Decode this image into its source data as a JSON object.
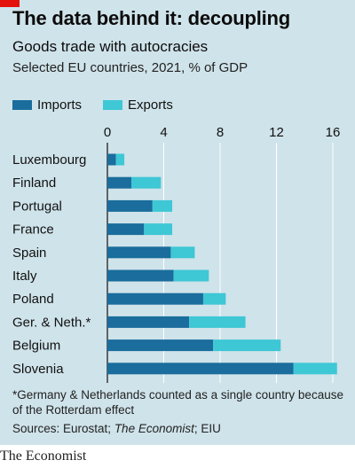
{
  "header": {
    "title": "The data behind it: decoupling",
    "subtitle": "Goods trade with autocracies",
    "subtitle2": "Selected EU countries, 2021, % of GDP"
  },
  "colors": {
    "imports": "#1a6d9c",
    "exports": "#3ec7d5",
    "accent": "#e3120b",
    "background": "#cfe3ea"
  },
  "chart_data": {
    "type": "bar",
    "orientation": "horizontal",
    "stacked": true,
    "categories": [
      "Luxembourg",
      "Finland",
      "Portugal",
      "France",
      "Spain",
      "Italy",
      "Poland",
      "Ger. & Neth.*",
      "Belgium",
      "Slovenia"
    ],
    "series": [
      {
        "name": "Imports",
        "values": [
          0.6,
          1.7,
          3.2,
          2.6,
          4.5,
          4.7,
          6.8,
          5.8,
          7.5,
          13.2
        ]
      },
      {
        "name": "Exports",
        "values": [
          0.6,
          2.1,
          1.4,
          2.0,
          1.7,
          2.5,
          1.6,
          4.0,
          4.8,
          3.1
        ]
      }
    ],
    "xticks": [
      "0",
      "4",
      "8",
      "12",
      "16"
    ],
    "xlim": [
      0,
      16
    ],
    "legend_position": "top-left",
    "grid": true
  },
  "footnote": {
    "line1": "*Germany & Netherlands counted as a single country because",
    "line2": "of the Rotterdam effect",
    "sources_prefix": "Sources: Eurostat; ",
    "sources_em": "The Economist",
    "sources_suffix": "; EIU"
  },
  "brand": "The Economist"
}
